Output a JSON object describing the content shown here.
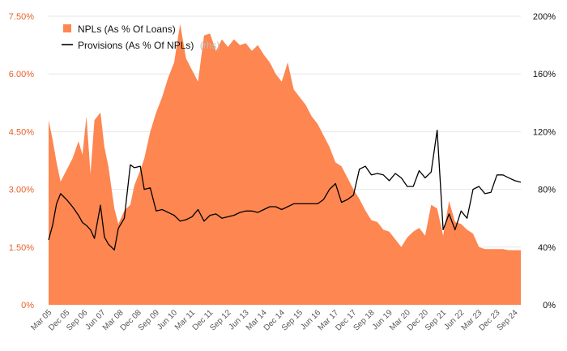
{
  "chart_data": {
    "type": "area",
    "title": "",
    "grid": "horizontal",
    "legend_position": "top-left",
    "colors": {
      "npl": "#fd8651",
      "provisions": "#000000",
      "left_axis_text": "#e8602c",
      "right_axis_text": "#111111",
      "grid": "#e6e6e6"
    },
    "y_left": {
      "lim": [
        0,
        7.5
      ],
      "ticks": [
        0,
        1.5,
        3.0,
        4.5,
        6.0,
        7.5
      ],
      "tick_labels": [
        "0%",
        "1.50%",
        "3.00%",
        "4.50%",
        "6.00%",
        "7.50%"
      ]
    },
    "y_right": {
      "lim": [
        0,
        200
      ],
      "ticks": [
        0,
        40,
        80,
        120,
        160,
        200
      ],
      "tick_labels": [
        "0%",
        "40%",
        "80%",
        "120%",
        "160%",
        "200%"
      ]
    },
    "x_tick_labels": [
      "Mar 05",
      "Dec 05",
      "Sep 06",
      "Jun 07",
      "Mar 08",
      "Dec 08",
      "Sep 09",
      "Jun 10",
      "Mar 11",
      "Dec 11",
      "Sep 12",
      "Jun 13",
      "Mar 14",
      "Dec 14",
      "Sep 15",
      "Jun 16",
      "Mar 17",
      "Dec 17",
      "Sep 18",
      "Jun 19",
      "Mar 20",
      "Dec 20",
      "Sep 21",
      "Jun 22",
      "Mar 23",
      "Dec 23",
      "Sep 24"
    ],
    "series": [
      {
        "name": "NPLs (As % Of Loans)",
        "axis": "left",
        "kind": "area",
        "points": [
          [
            "Mar 05",
            4.8
          ],
          [
            "May 05",
            4.3
          ],
          [
            "Jul 05",
            3.7
          ],
          [
            "Sep 05",
            3.2
          ],
          [
            "Dec 05",
            3.5
          ],
          [
            "Mar 06",
            3.8
          ],
          [
            "Jun 06",
            4.25
          ],
          [
            "Aug 06",
            3.9
          ],
          [
            "Oct 06",
            4.9
          ],
          [
            "Dec 06",
            3.4
          ],
          [
            "Feb 07",
            4.8
          ],
          [
            "May 07",
            5.0
          ],
          [
            "Jul 07",
            4.1
          ],
          [
            "Sep 07",
            3.6
          ],
          [
            "Dec 07",
            2.5
          ],
          [
            "Feb 08",
            2.1
          ],
          [
            "May 08",
            2.45
          ],
          [
            "Aug 08",
            2.6
          ],
          [
            "Oct 08",
            3.1
          ],
          [
            "Jan 09",
            3.5
          ],
          [
            "Mar 09",
            3.8
          ],
          [
            "Jun 09",
            4.5
          ],
          [
            "Sep 09",
            5.0
          ],
          [
            "Dec 09",
            5.4
          ],
          [
            "Mar 10",
            5.9
          ],
          [
            "Jun 10",
            6.3
          ],
          [
            "Sep 10",
            7.3
          ],
          [
            "Dec 10",
            6.4
          ],
          [
            "Mar 11",
            6.1
          ],
          [
            "Jun 11",
            5.8
          ],
          [
            "Sep 11",
            7.0
          ],
          [
            "Dec 11",
            7.05
          ],
          [
            "Mar 12",
            6.6
          ],
          [
            "Jun 12",
            6.9
          ],
          [
            "Sep 12",
            6.7
          ],
          [
            "Dec 12",
            6.9
          ],
          [
            "Mar 13",
            6.75
          ],
          [
            "Jun 13",
            6.8
          ],
          [
            "Sep 13",
            6.6
          ],
          [
            "Dec 13",
            6.75
          ],
          [
            "Mar 14",
            6.5
          ],
          [
            "Jun 14",
            6.3
          ],
          [
            "Sep 14",
            6.0
          ],
          [
            "Dec 14",
            5.8
          ],
          [
            "Mar 15",
            6.3
          ],
          [
            "Jun 15",
            5.6
          ],
          [
            "Sep 15",
            5.4
          ],
          [
            "Dec 15",
            5.2
          ],
          [
            "Mar 16",
            4.9
          ],
          [
            "Jun 16",
            4.7
          ],
          [
            "Sep 16",
            4.4
          ],
          [
            "Dec 16",
            4.1
          ],
          [
            "Mar 17",
            3.7
          ],
          [
            "Jun 17",
            3.6
          ],
          [
            "Sep 17",
            3.3
          ],
          [
            "Dec 17",
            3.0
          ],
          [
            "Mar 18",
            2.75
          ],
          [
            "Jun 18",
            2.45
          ],
          [
            "Sep 18",
            2.2
          ],
          [
            "Dec 18",
            2.15
          ],
          [
            "Mar 19",
            1.95
          ],
          [
            "Jun 19",
            1.9
          ],
          [
            "Sep 19",
            1.7
          ],
          [
            "Dec 19",
            1.5
          ],
          [
            "Mar 20",
            1.75
          ],
          [
            "Jun 20",
            1.9
          ],
          [
            "Sep 20",
            2.0
          ],
          [
            "Dec 20",
            1.8
          ],
          [
            "Mar 21",
            2.6
          ],
          [
            "Jun 21",
            2.5
          ],
          [
            "Sep 21",
            1.8
          ],
          [
            "Dec 21",
            2.7
          ],
          [
            "Mar 22",
            2.15
          ],
          [
            "Jun 22",
            2.1
          ],
          [
            "Sep 22",
            1.95
          ],
          [
            "Dec 22",
            1.85
          ],
          [
            "Mar 23",
            1.5
          ],
          [
            "Jun 23",
            1.45
          ],
          [
            "Sep 23",
            1.45
          ],
          [
            "Dec 23",
            1.45
          ],
          [
            "Mar 24",
            1.45
          ],
          [
            "Jun 24",
            1.42
          ],
          [
            "Sep 24",
            1.42
          ],
          [
            "Dec 24",
            1.42
          ]
        ]
      },
      {
        "name": "Provisions (As % Of NPLs)",
        "axis": "right",
        "kind": "line",
        "points": [
          [
            "Mar 05",
            45
          ],
          [
            "May 05",
            55
          ],
          [
            "Jul 05",
            70
          ],
          [
            "Sep 05",
            77
          ],
          [
            "Dec 05",
            73
          ],
          [
            "Mar 06",
            68
          ],
          [
            "Jun 06",
            62
          ],
          [
            "Aug 06",
            57
          ],
          [
            "Oct 06",
            55
          ],
          [
            "Dec 06",
            52
          ],
          [
            "Feb 07",
            46
          ],
          [
            "May 07",
            69
          ],
          [
            "Jul 07",
            47
          ],
          [
            "Sep 07",
            42
          ],
          [
            "Dec 07",
            38
          ],
          [
            "Feb 08",
            53
          ],
          [
            "May 08",
            60
          ],
          [
            "Aug 08",
            97
          ],
          [
            "Oct 08",
            95
          ],
          [
            "Jan 09",
            96
          ],
          [
            "Mar 09",
            80
          ],
          [
            "Jun 09",
            81
          ],
          [
            "Sep 09",
            65
          ],
          [
            "Dec 09",
            66
          ],
          [
            "Mar 10",
            64
          ],
          [
            "Jun 10",
            62
          ],
          [
            "Sep 10",
            58
          ],
          [
            "Dec 10",
            59
          ],
          [
            "Mar 11",
            61
          ],
          [
            "Jun 11",
            66
          ],
          [
            "Sep 11",
            58
          ],
          [
            "Dec 11",
            62
          ],
          [
            "Mar 12",
            63
          ],
          [
            "Jun 12",
            60
          ],
          [
            "Sep 12",
            61
          ],
          [
            "Dec 12",
            62
          ],
          [
            "Mar 13",
            64
          ],
          [
            "Jun 13",
            65
          ],
          [
            "Sep 13",
            65
          ],
          [
            "Dec 13",
            64
          ],
          [
            "Mar 14",
            66
          ],
          [
            "Jun 14",
            68
          ],
          [
            "Sep 14",
            68
          ],
          [
            "Dec 14",
            66
          ],
          [
            "Mar 15",
            68
          ],
          [
            "Jun 15",
            70
          ],
          [
            "Sep 15",
            70
          ],
          [
            "Dec 15",
            70
          ],
          [
            "Mar 16",
            70
          ],
          [
            "Jun 16",
            70
          ],
          [
            "Sep 16",
            73
          ],
          [
            "Dec 16",
            80
          ],
          [
            "Mar 17",
            84
          ],
          [
            "Jun 17",
            71
          ],
          [
            "Sep 17",
            73
          ],
          [
            "Dec 17",
            76
          ],
          [
            "Mar 18",
            94
          ],
          [
            "Jun 18",
            96
          ],
          [
            "Sep 18",
            90
          ],
          [
            "Dec 18",
            91
          ],
          [
            "Mar 19",
            90
          ],
          [
            "Jun 19",
            86
          ],
          [
            "Sep 19",
            91
          ],
          [
            "Dec 19",
            88
          ],
          [
            "Mar 20",
            82
          ],
          [
            "Jun 20",
            82
          ],
          [
            "Sep 20",
            93
          ],
          [
            "Dec 20",
            88
          ],
          [
            "Mar 21",
            92
          ],
          [
            "Jun 21",
            121
          ],
          [
            "Sep 21",
            52
          ],
          [
            "Dec 21",
            63
          ],
          [
            "Mar 22",
            52
          ],
          [
            "Jun 22",
            65
          ],
          [
            "Sep 22",
            60
          ],
          [
            "Dec 22",
            80
          ],
          [
            "Mar 23",
            82
          ],
          [
            "Jun 23",
            77
          ],
          [
            "Sep 23",
            78
          ],
          [
            "Dec 23",
            90
          ],
          [
            "Mar 24",
            90
          ],
          [
            "Jun 24",
            88
          ],
          [
            "Sep 24",
            86
          ],
          [
            "Dec 24",
            85
          ]
        ]
      }
    ]
  },
  "legend": {
    "npl_label": "NPLs (As % Of Loans)",
    "provisions_label": "Provisions (As % Of NPLs)",
    "provisions_suffix": "(rhs)"
  }
}
